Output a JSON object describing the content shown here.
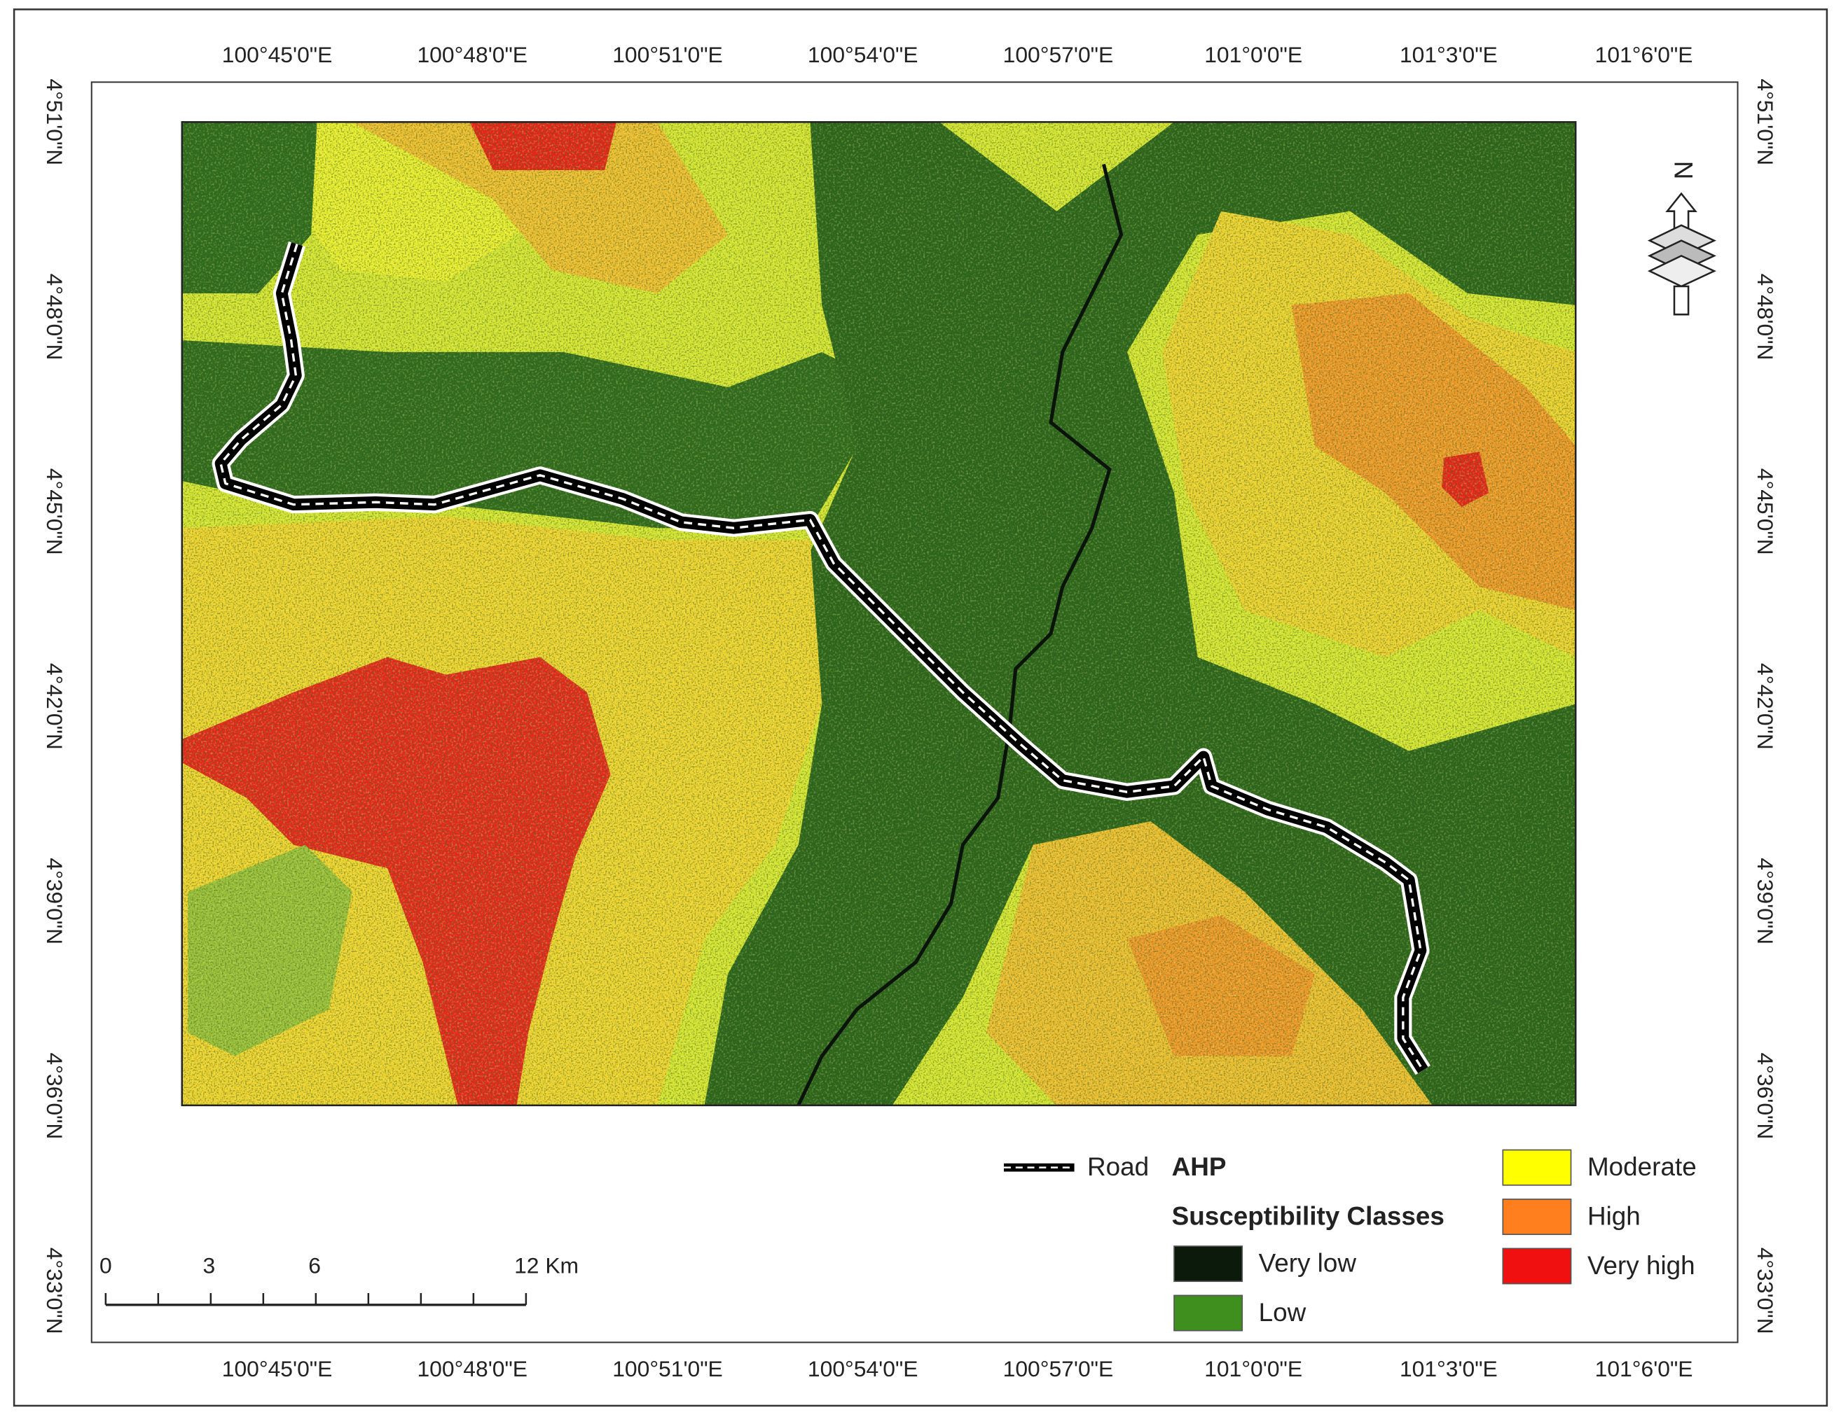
{
  "map": {
    "longitudes": [
      "100°45'0\"E",
      "100°48'0\"E",
      "100°51'0\"E",
      "100°54'0\"E",
      "100°57'0\"E",
      "101°0'0\"E",
      "101°3'0\"E",
      "101°6'0\"E"
    ],
    "latitudes": [
      "4°51'0\"N",
      "4°48'0\"N",
      "4°45'0\"N",
      "4°42'0\"N",
      "4°39'0\"N",
      "4°36'0\"N",
      "4°33'0\"N"
    ],
    "north_label": "N",
    "legend": {
      "road": "Road",
      "title": "AHP",
      "subtitle": "Susceptibility Classes",
      "classes": [
        {
          "label": "Very low",
          "color": "#0c1a0c"
        },
        {
          "label": "Low",
          "color": "#3f8f1f"
        },
        {
          "label": "Moderate",
          "color": "#ffff00"
        },
        {
          "label": "High",
          "color": "#ff7f1e"
        },
        {
          "label": "Very high",
          "color": "#f01010"
        }
      ]
    },
    "scale_bar": {
      "labels": [
        "0",
        "3",
        "6",
        "12 Km"
      ]
    }
  }
}
